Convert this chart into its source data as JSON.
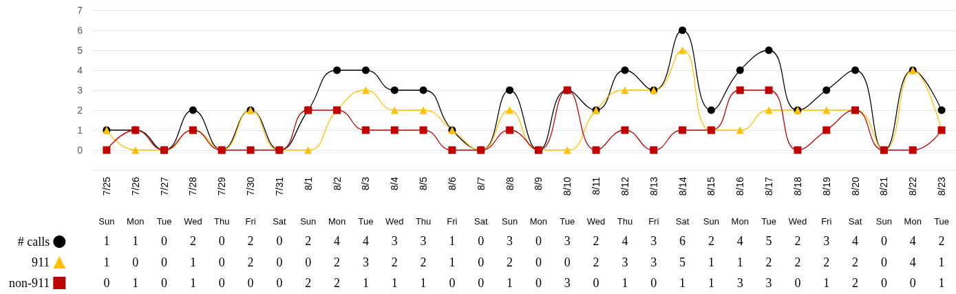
{
  "chart_data": {
    "type": "line",
    "categories": [
      "7/25\nSun",
      "7/26\nMon",
      "7/27\nTue",
      "7/28\nWed",
      "7/29\nThu",
      "7/30\nFri",
      "7/31\nSat",
      "8/1\nSun",
      "8/2\nMon",
      "8/3\nTue",
      "8/4\nWed",
      "8/5\nThu",
      "8/6\nFri",
      "8/7\nSat",
      "8/8\nSun",
      "8/9\nMon",
      "8/10\nTue",
      "8/11\nWed",
      "8/12\nThu",
      "8/13\nFri",
      "8/14\nSat",
      "8/15\nSun",
      "8/16\nMon",
      "8/17\nTue",
      "8/18\nWed",
      "8/19\nFri",
      "8/20\nSat",
      "8/21\nSun",
      "8/22\nMon",
      "8/23\nTue"
    ],
    "series": [
      {
        "name": "# calls",
        "color": "#000000",
        "marker": "circle",
        "values": [
          1,
          1,
          0,
          2,
          0,
          2,
          0,
          2,
          4,
          4,
          3,
          3,
          1,
          0,
          3,
          0,
          3,
          2,
          4,
          3,
          6,
          2,
          4,
          5,
          2,
          3,
          4,
          0,
          4,
          2
        ]
      },
      {
        "name": "911",
        "color": "#ffc000",
        "marker": "triangle",
        "values": [
          1,
          0,
          0,
          1,
          0,
          2,
          0,
          0,
          2,
          3,
          2,
          2,
          1,
          0,
          2,
          0,
          0,
          2,
          3,
          3,
          5,
          1,
          1,
          2,
          2,
          2,
          2,
          0,
          4,
          1
        ]
      },
      {
        "name": "non-911",
        "color": "#c00000",
        "marker": "square",
        "values": [
          0,
          1,
          0,
          1,
          0,
          0,
          0,
          2,
          2,
          1,
          1,
          1,
          0,
          0,
          1,
          0,
          3,
          0,
          1,
          0,
          1,
          1,
          3,
          3,
          0,
          1,
          2,
          0,
          0,
          1
        ]
      }
    ],
    "ylim": [
      -1,
      7
    ],
    "yticks": [
      {
        "value": -1,
        "label": null
      },
      0,
      1,
      2,
      3,
      4,
      5,
      6,
      7
    ],
    "grid": "y",
    "legend": "bottom left",
    "data_labels": true
  }
}
